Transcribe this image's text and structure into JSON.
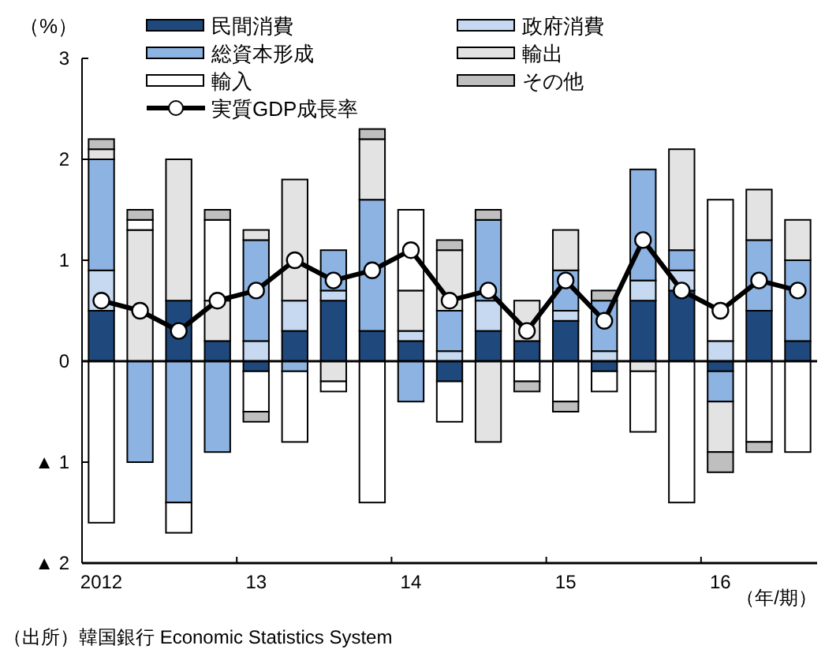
{
  "chart_data": {
    "type": "bar",
    "stacked": true,
    "ylabel": "（%）",
    "xlabel": "（年/期）",
    "annotations": [
      "（出所）韓国銀行 Economic Statistics System"
    ],
    "categories": [
      "2012",
      null,
      null,
      null,
      "13",
      null,
      null,
      null,
      "14",
      null,
      null,
      null,
      "15",
      null,
      null,
      null,
      "16",
      null,
      null
    ],
    "ylim": [
      -2,
      3
    ],
    "yticks": [
      {
        "value": 3,
        "label": "3"
      },
      {
        "value": 2,
        "label": "2"
      },
      {
        "value": 1,
        "label": "1"
      },
      {
        "value": 0,
        "label": "0"
      },
      {
        "value": -1,
        "label": "▲ 1"
      },
      {
        "value": -2,
        "label": "▲ 2"
      }
    ],
    "legend": "top",
    "series": [
      {
        "name": "民間消費",
        "color": "#1f497d",
        "values": [
          0.5,
          0,
          0.6,
          0.2,
          -0.1,
          0.3,
          0.6,
          0.3,
          0.2,
          -0.2,
          0.3,
          0.2,
          0.4,
          -0.1,
          0.6,
          0.7,
          -0.1,
          0.5,
          0.2
        ]
      },
      {
        "name": "政府消費",
        "color": "#c6d9f1",
        "values": [
          0.4,
          0,
          0,
          0,
          0.2,
          0.3,
          0.1,
          0,
          0.1,
          0.1,
          0.3,
          0,
          0.1,
          0.1,
          0.2,
          0.2,
          0.2,
          0,
          0
        ]
      },
      {
        "name": "総資本形成",
        "color": "#8db3e2",
        "values": [
          1.1,
          -1.0,
          -1.4,
          -0.9,
          1.0,
          -0.1,
          0.4,
          1.3,
          -0.4,
          0.4,
          0.8,
          0,
          0.4,
          0.5,
          1.1,
          0.2,
          -0.3,
          0.7,
          0.8
        ]
      },
      {
        "name": "輸出",
        "color": "#e3e3e3",
        "values": [
          0.1,
          1.3,
          1.4,
          0.4,
          0.1,
          1.2,
          -0.2,
          0.6,
          0.4,
          0.6,
          -0.8,
          0.4,
          0.4,
          0,
          -0.1,
          1.0,
          -0.5,
          0.5,
          0.4
        ]
      },
      {
        "name": "輸入",
        "color": "#ffffff",
        "values": [
          -1.6,
          0.1,
          -0.3,
          0.8,
          -0.4,
          -0.7,
          -0.1,
          -1.4,
          0.8,
          -0.4,
          0,
          -0.2,
          -0.4,
          -0.2,
          -0.6,
          -1.4,
          1.4,
          -0.8,
          -0.9
        ]
      },
      {
        "name": "その他",
        "color": "#bfbfbf",
        "values": [
          0.1,
          0.1,
          0,
          0.1,
          -0.1,
          0,
          0,
          0.1,
          0,
          0.1,
          0.1,
          -0.1,
          -0.1,
          0.1,
          0,
          0,
          -0.2,
          -0.1,
          0
        ]
      },
      {
        "name": "実質GDP成長率",
        "type": "line",
        "color": "#000000",
        "marker": "circle",
        "values": [
          0.6,
          0.5,
          0.3,
          0.6,
          0.7,
          1.0,
          0.8,
          0.9,
          1.1,
          0.6,
          0.7,
          0.3,
          0.8,
          0.4,
          1.2,
          0.7,
          0.5,
          0.8,
          0.7
        ]
      }
    ]
  }
}
